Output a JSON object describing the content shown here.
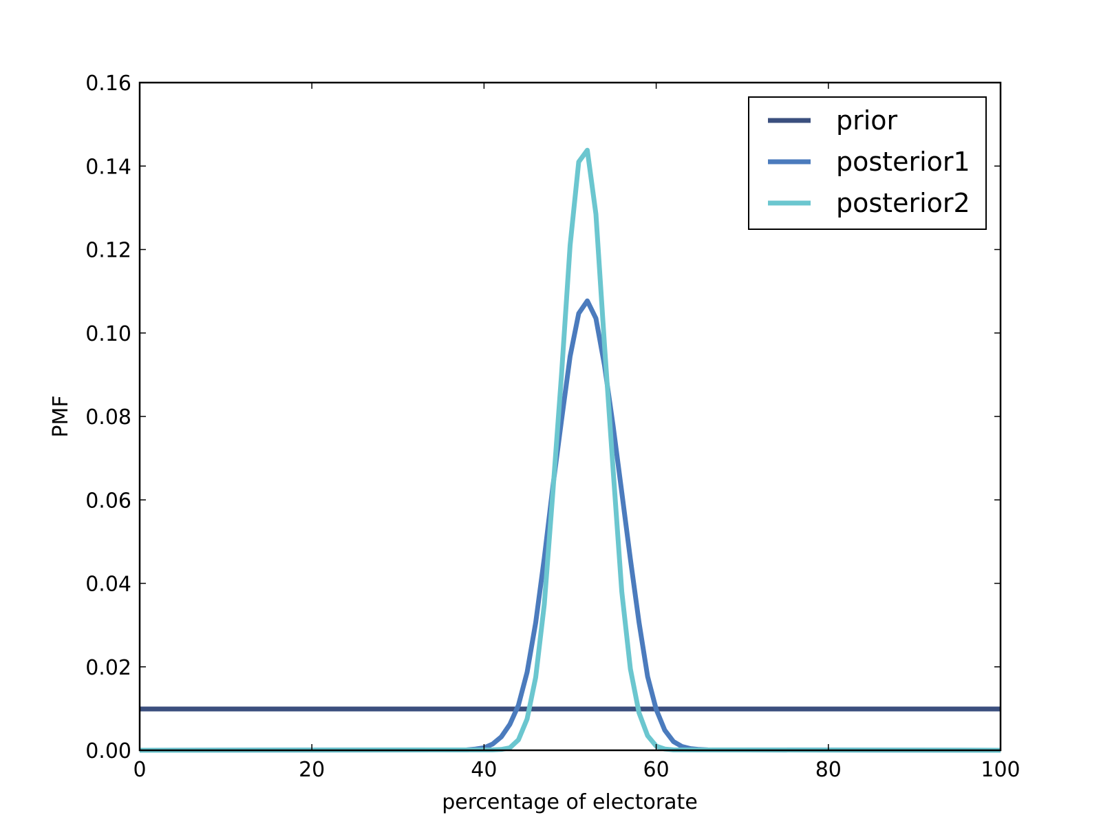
{
  "chart_data": {
    "type": "line",
    "title": "",
    "xlabel": "percentage of electorate",
    "ylabel": "PMF",
    "xlim": [
      0,
      100
    ],
    "ylim": [
      0,
      0.16
    ],
    "xticks": [
      0,
      20,
      40,
      60,
      80,
      100
    ],
    "xtick_labels": [
      "0",
      "20",
      "40",
      "60",
      "80",
      "100"
    ],
    "yticks": [
      0.0,
      0.02,
      0.04,
      0.06,
      0.08,
      0.1,
      0.12,
      0.14,
      0.16
    ],
    "ytick_labels": [
      "0.00",
      "0.02",
      "0.04",
      "0.06",
      "0.08",
      "0.10",
      "0.12",
      "0.14",
      "0.16"
    ],
    "grid": false,
    "legend_position": "top-right",
    "series": [
      {
        "name": "prior",
        "color": "#3b4f7e",
        "x": [
          0,
          100
        ],
        "y": [
          0.0099,
          0.0099
        ]
      },
      {
        "name": "posterior1",
        "color": "#4b7bbd",
        "x": [
          0,
          38,
          39,
          40,
          41,
          42,
          43,
          44,
          45,
          46,
          47,
          48,
          49,
          50,
          51,
          52,
          53,
          54,
          55,
          56,
          57,
          58,
          59,
          60,
          61,
          62,
          63,
          64,
          65,
          66,
          100
        ],
        "y": [
          0,
          0.0001,
          0.0003,
          0.0006,
          0.0015,
          0.0032,
          0.0062,
          0.0108,
          0.0187,
          0.0306,
          0.0461,
          0.0633,
          0.0791,
          0.0944,
          0.1047,
          0.1077,
          0.1035,
          0.0922,
          0.0776,
          0.0618,
          0.0458,
          0.0307,
          0.0177,
          0.0098,
          0.0048,
          0.0021,
          0.0009,
          0.0004,
          0.0002,
          0.0001,
          0
        ]
      },
      {
        "name": "posterior2",
        "color": "#6bc6cf",
        "x": [
          0,
          41,
          42,
          43,
          44,
          45,
          46,
          47,
          48,
          49,
          50,
          51,
          52,
          53,
          54,
          55,
          56,
          57,
          58,
          59,
          60,
          61,
          62,
          100
        ],
        "y": [
          0,
          0.0001,
          0.0002,
          0.0006,
          0.0025,
          0.0075,
          0.0175,
          0.035,
          0.062,
          0.09,
          0.121,
          0.141,
          0.1438,
          0.1285,
          0.097,
          0.067,
          0.038,
          0.0195,
          0.009,
          0.0035,
          0.001,
          0.0003,
          0.0001,
          0
        ]
      }
    ]
  }
}
